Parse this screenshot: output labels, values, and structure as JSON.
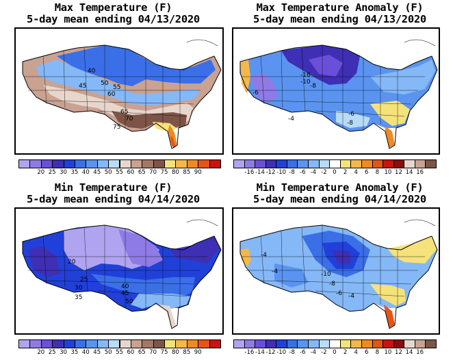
{
  "panels": [
    {
      "id": "max_temp",
      "title_line1": "Max Temperature (F)",
      "title_line2": "5-day mean ending 04/13/2020",
      "contour_labels": [
        "40",
        "45",
        "50",
        "55",
        "60",
        "65",
        "70",
        "75"
      ],
      "colorbar": {
        "ticks": [
          "20",
          "25",
          "30",
          "35",
          "40",
          "45",
          "50",
          "55",
          "60",
          "65",
          "70",
          "75",
          "80",
          "85",
          "90"
        ],
        "colors": [
          "#b0a4f0",
          "#8f7be6",
          "#6a4fd8",
          "#3e2fb5",
          "#2140d9",
          "#3a6fe8",
          "#5a94f0",
          "#85b8f7",
          "#b8dcf7",
          "#e8d6cc",
          "#c9a291",
          "#a57766",
          "#7d5447",
          "#f5e27a",
          "#f4b84a",
          "#ef8a22",
          "#e65416",
          "#c8140e"
        ]
      }
    },
    {
      "id": "max_temp_anom",
      "title_line1": "Max Temperature Anomaly (F)",
      "title_line2": "5-day mean ending 04/13/2020",
      "contour_labels": [
        "-16",
        "-10",
        "-8",
        "-6",
        "-4",
        "-6",
        "-8"
      ],
      "colorbar": {
        "ticks": [
          "-16",
          "-14",
          "-12",
          "-10",
          "-8",
          "-6",
          "-4",
          "-2",
          "0",
          "2",
          "4",
          "6",
          "8",
          "10",
          "12",
          "14",
          "16"
        ],
        "colors": [
          "#b0a4f0",
          "#8f7be6",
          "#6a4fd8",
          "#3e2fb5",
          "#2140d9",
          "#3a6fe8",
          "#5a94f0",
          "#85b8f7",
          "#b8dcf7",
          "#ffffff",
          "#f5e27a",
          "#f4b84a",
          "#ef8a22",
          "#e65416",
          "#c8140e",
          "#8a0c0c",
          "#e8d6cc",
          "#c9a291",
          "#7d5447"
        ]
      }
    },
    {
      "id": "min_temp",
      "title_line1": "Min Temperature (F)",
      "title_line2": "5-day mean ending 04/14/2020",
      "contour_labels": [
        "20",
        "25",
        "30",
        "35",
        "40",
        "45",
        "50"
      ],
      "colorbar": {
        "ticks": [
          "20",
          "25",
          "30",
          "35",
          "40",
          "45",
          "50",
          "55",
          "60",
          "65",
          "70",
          "75",
          "80",
          "85",
          "90"
        ],
        "colors": [
          "#b0a4f0",
          "#8f7be6",
          "#6a4fd8",
          "#3e2fb5",
          "#2140d9",
          "#3a6fe8",
          "#5a94f0",
          "#85b8f7",
          "#b8dcf7",
          "#e8d6cc",
          "#c9a291",
          "#a57766",
          "#7d5447",
          "#f5e27a",
          "#f4b84a",
          "#ef8a22",
          "#e65416",
          "#c8140e"
        ]
      }
    },
    {
      "id": "min_temp_anom",
      "title_line1": "Min Temperature Anomaly (F)",
      "title_line2": "5-day mean ending 04/14/2020",
      "contour_labels": [
        "-4",
        "-4",
        "-10",
        "-8",
        "-6",
        "-4"
      ],
      "colorbar": {
        "ticks": [
          "-16",
          "-14",
          "-12",
          "-10",
          "-8",
          "-6",
          "-4",
          "-2",
          "0",
          "2",
          "4",
          "6",
          "8",
          "10",
          "12",
          "14",
          "16"
        ],
        "colors": [
          "#b0a4f0",
          "#8f7be6",
          "#6a4fd8",
          "#3e2fb5",
          "#2140d9",
          "#3a6fe8",
          "#5a94f0",
          "#85b8f7",
          "#b8dcf7",
          "#ffffff",
          "#f5e27a",
          "#f4b84a",
          "#ef8a22",
          "#e65416",
          "#c8140e",
          "#8a0c0c",
          "#e8d6cc",
          "#c9a291",
          "#7d5447"
        ]
      }
    }
  ]
}
